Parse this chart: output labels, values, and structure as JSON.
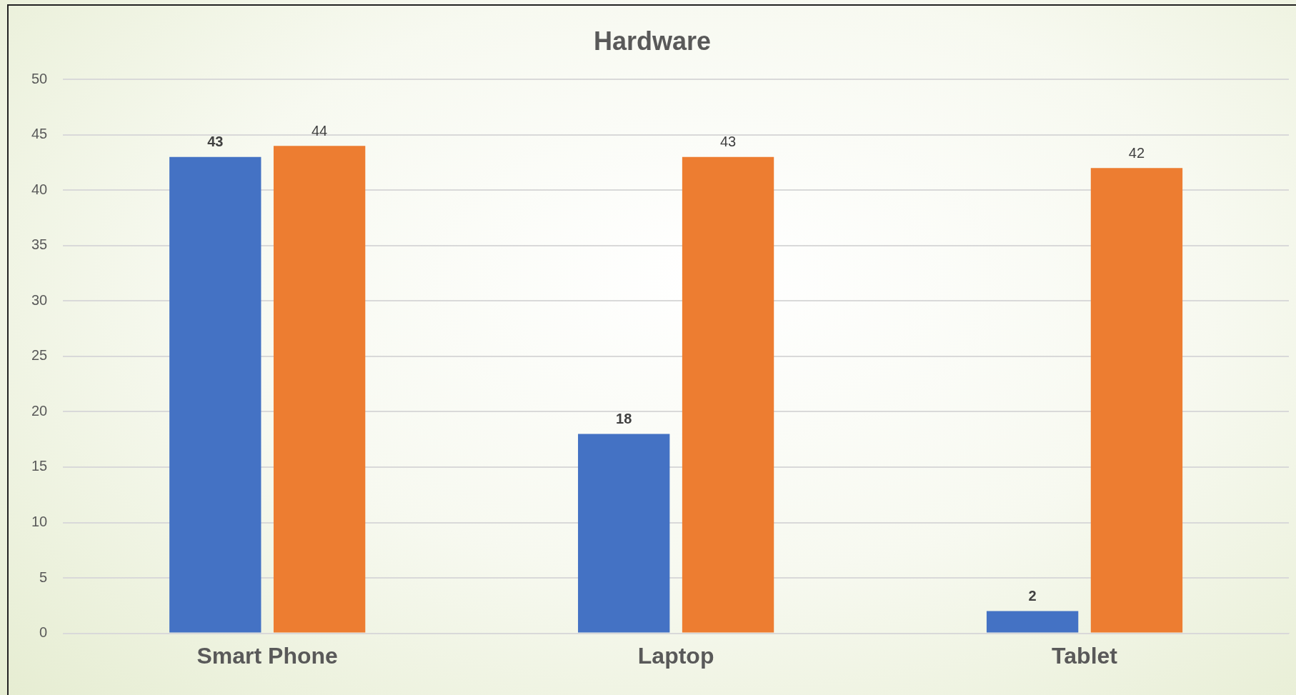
{
  "chart_data": {
    "type": "bar",
    "title": "Hardware",
    "categories": [
      "Smart Phone",
      "Laptop",
      "Tablet"
    ],
    "series": [
      {
        "color": "#4472c4",
        "values": [
          43,
          18,
          2
        ]
      },
      {
        "color": "#ed7d31",
        "values": [
          44,
          43,
          42
        ]
      }
    ],
    "ylim": [
      0,
      50
    ],
    "yticks": [
      0,
      5,
      10,
      15,
      20,
      25,
      30,
      35,
      40,
      45,
      50
    ],
    "grid": "y",
    "data_labels": true,
    "legend": false
  }
}
